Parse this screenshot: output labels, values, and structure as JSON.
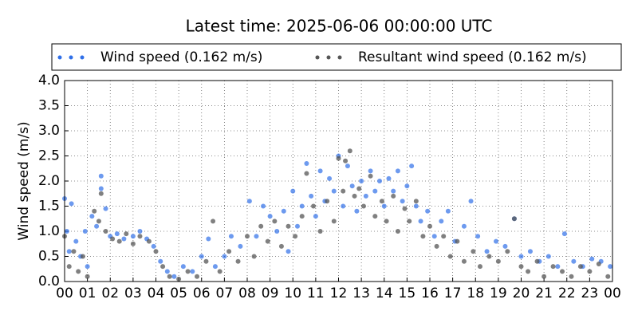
{
  "chart_data": {
    "type": "scatter",
    "title": "Latest time: 2025-06-06 00:00:00 UTC",
    "y_label": "Wind speed (m/s)",
    "xlim": [
      0,
      24
    ],
    "ylim": [
      0,
      4
    ],
    "xticks": [
      {
        "value": 0,
        "label": "00"
      },
      {
        "value": 1,
        "label": "01"
      },
      {
        "value": 2,
        "label": "02"
      },
      {
        "value": 3,
        "label": "03"
      },
      {
        "value": 4,
        "label": "04"
      },
      {
        "value": 5,
        "label": "05"
      },
      {
        "value": 6,
        "label": "06"
      },
      {
        "value": 7,
        "label": "07"
      },
      {
        "value": 8,
        "label": "08"
      },
      {
        "value": 9,
        "label": "09"
      },
      {
        "value": 10,
        "label": "10"
      },
      {
        "value": 11,
        "label": "11"
      },
      {
        "value": 12,
        "label": "12"
      },
      {
        "value": 13,
        "label": "13"
      },
      {
        "value": 14,
        "label": "14"
      },
      {
        "value": 15,
        "label": "15"
      },
      {
        "value": 16,
        "label": "16"
      },
      {
        "value": 17,
        "label": "17"
      },
      {
        "value": 18,
        "label": "18"
      },
      {
        "value": 19,
        "label": "19"
      },
      {
        "value": 20,
        "label": "20"
      },
      {
        "value": 21,
        "label": "21"
      },
      {
        "value": 22,
        "label": "22"
      },
      {
        "value": 23,
        "label": "23"
      },
      {
        "value": 24,
        "label": "00"
      }
    ],
    "yticks": [
      {
        "value": 0,
        "label": "0.0"
      },
      0.5,
      {
        "value": 1,
        "label": "1.0"
      },
      1.5,
      {
        "value": 2,
        "label": "2.0"
      },
      2.5,
      {
        "value": 3,
        "label": "3.0"
      },
      3.5,
      {
        "value": 4,
        "label": "4.0"
      }
    ],
    "grid": true,
    "legend": "top",
    "series": [
      {
        "name": "Wind speed (0.162 m/s)",
        "color": "#2f6fe8",
        "x": [
          0.0,
          0.1,
          0.2,
          0.3,
          0.5,
          0.7,
          0.9,
          1.0,
          1.2,
          1.4,
          1.6,
          1.6,
          1.8,
          2.0,
          2.3,
          2.6,
          3.0,
          3.3,
          3.6,
          3.9,
          4.2,
          4.5,
          4.8,
          5.2,
          5.6,
          6.0,
          6.3,
          6.6,
          7.0,
          7.3,
          7.7,
          8.1,
          8.4,
          8.7,
          9.0,
          9.3,
          9.6,
          9.8,
          10.0,
          10.2,
          10.4,
          10.6,
          10.8,
          11.0,
          11.2,
          11.4,
          11.6,
          11.8,
          12.0,
          12.2,
          12.4,
          12.6,
          12.8,
          13.0,
          13.2,
          13.4,
          13.6,
          13.8,
          14.0,
          14.2,
          14.4,
          14.6,
          14.8,
          15.0,
          15.2,
          15.4,
          15.6,
          15.9,
          16.2,
          16.5,
          16.8,
          17.1,
          17.5,
          17.8,
          18.1,
          18.5,
          18.9,
          19.3,
          19.7,
          20.0,
          20.4,
          20.8,
          21.2,
          21.6,
          21.9,
          22.3,
          22.7,
          23.1,
          23.5,
          23.9
        ],
        "values": [
          1.65,
          1.0,
          0.6,
          1.55,
          0.8,
          0.5,
          1.0,
          0.3,
          1.3,
          1.1,
          2.1,
          1.85,
          1.45,
          0.9,
          0.95,
          0.85,
          0.9,
          1.0,
          0.85,
          0.7,
          0.4,
          0.2,
          0.1,
          0.3,
          0.2,
          0.5,
          0.85,
          0.3,
          0.5,
          0.9,
          0.7,
          1.6,
          0.9,
          1.5,
          1.3,
          1.0,
          1.4,
          0.6,
          1.8,
          1.1,
          1.5,
          2.35,
          1.7,
          1.3,
          2.2,
          1.6,
          2.05,
          1.8,
          2.5,
          1.5,
          2.3,
          1.9,
          1.4,
          2.0,
          1.7,
          2.2,
          1.8,
          2.0,
          1.5,
          2.05,
          1.8,
          2.2,
          1.6,
          1.9,
          2.3,
          1.5,
          1.2,
          1.4,
          0.9,
          1.2,
          1.4,
          0.8,
          1.1,
          1.6,
          0.9,
          0.6,
          0.8,
          0.7,
          1.25,
          0.5,
          0.6,
          0.4,
          0.5,
          0.3,
          0.95,
          0.4,
          0.3,
          0.45,
          0.4,
          0.3
        ]
      },
      {
        "name": "Resultant wind speed (0.162 m/s)",
        "color": "#555555",
        "x": [
          0.0,
          0.2,
          0.4,
          0.6,
          0.8,
          1.0,
          1.3,
          1.5,
          1.6,
          1.8,
          2.1,
          2.4,
          2.7,
          3.0,
          3.3,
          3.7,
          4.0,
          4.3,
          4.6,
          5.0,
          5.4,
          5.8,
          6.2,
          6.5,
          6.8,
          7.2,
          7.6,
          8.0,
          8.3,
          8.6,
          8.9,
          9.2,
          9.5,
          9.8,
          10.1,
          10.4,
          10.6,
          10.9,
          11.2,
          11.5,
          11.8,
          12.0,
          12.2,
          12.3,
          12.5,
          12.7,
          12.9,
          13.1,
          13.4,
          13.6,
          13.9,
          14.1,
          14.4,
          14.6,
          14.9,
          15.1,
          15.4,
          15.7,
          16.0,
          16.3,
          16.6,
          16.9,
          17.2,
          17.5,
          17.9,
          18.2,
          18.6,
          19.0,
          19.4,
          19.7,
          20.0,
          20.3,
          20.7,
          21.0,
          21.4,
          21.8,
          22.2,
          22.6,
          23.0,
          23.4,
          23.8
        ],
        "values": [
          0.9,
          0.3,
          0.6,
          0.2,
          0.5,
          0.1,
          1.4,
          1.2,
          1.75,
          1.0,
          0.85,
          0.8,
          0.95,
          0.75,
          0.9,
          0.8,
          0.6,
          0.3,
          0.1,
          0.05,
          0.2,
          0.1,
          0.4,
          1.2,
          0.2,
          0.6,
          0.4,
          0.9,
          0.5,
          1.1,
          0.8,
          1.2,
          0.7,
          1.1,
          0.9,
          1.3,
          2.15,
          1.5,
          1.0,
          1.6,
          1.2,
          2.45,
          1.8,
          2.4,
          2.6,
          1.7,
          1.85,
          1.5,
          2.1,
          1.3,
          1.6,
          1.2,
          1.7,
          1.0,
          1.45,
          1.2,
          1.6,
          0.9,
          1.1,
          0.7,
          0.9,
          0.5,
          0.8,
          0.4,
          0.6,
          0.3,
          0.5,
          0.4,
          0.6,
          1.25,
          0.3,
          0.2,
          0.4,
          0.1,
          0.3,
          0.2,
          0.1,
          0.3,
          0.2,
          0.35,
          0.1
        ]
      }
    ]
  }
}
